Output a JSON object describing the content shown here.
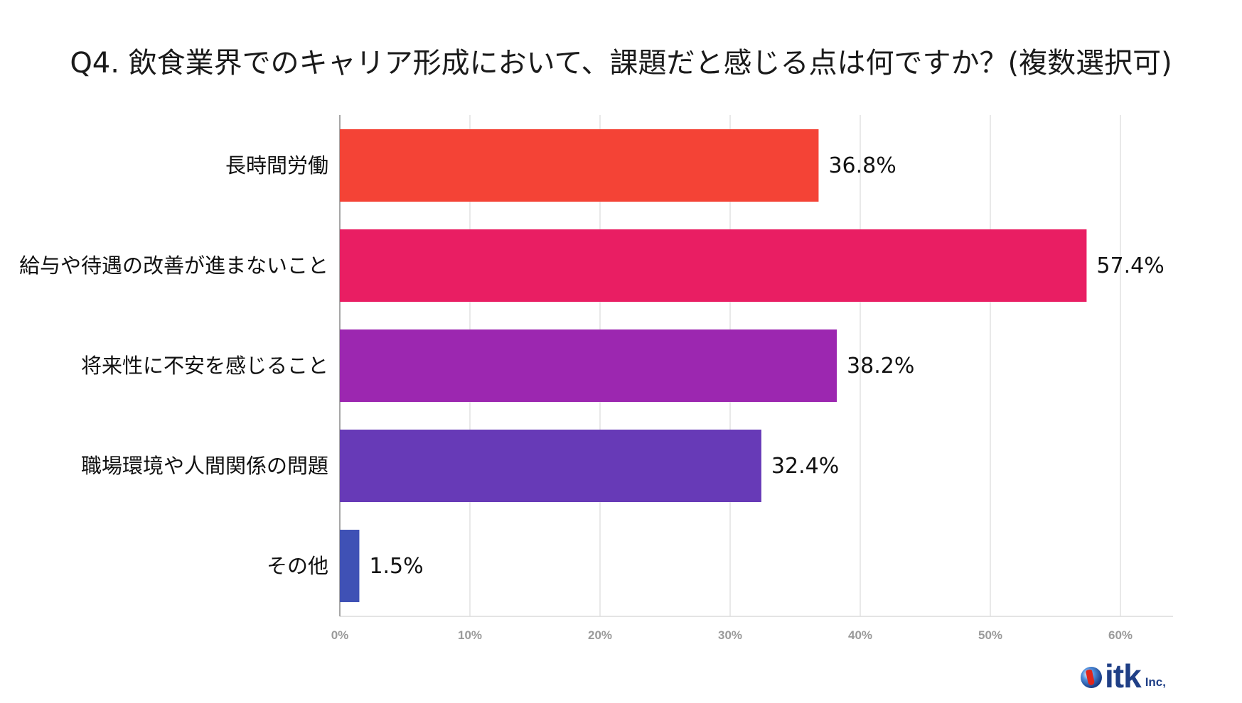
{
  "chart_data": {
    "type": "bar",
    "orientation": "horizontal",
    "title": "Q4. 飲食業界でのキャリア形成において、課題だと感じる点は何ですか？(複数選択可)",
    "categories": [
      "長時間労働",
      "給与や待遇の改善が進まないこと",
      "将来性に不安を感じること",
      "職場環境や人間関係の問題",
      "その他"
    ],
    "values": [
      36.8,
      57.4,
      38.2,
      32.4,
      1.5
    ],
    "value_labels": [
      "36.8%",
      "57.4%",
      "38.2%",
      "32.4%",
      "1.5%"
    ],
    "colors": [
      "#f44336",
      "#e91e63",
      "#9c27b0",
      "#673ab7",
      "#3f51b5"
    ],
    "xlim": [
      0,
      64
    ],
    "xticks": [
      0,
      10,
      20,
      30,
      40,
      50,
      60
    ],
    "xtick_labels": [
      "0%",
      "10%",
      "20%",
      "30%",
      "40%",
      "50%",
      "60%"
    ],
    "xlabel": "",
    "ylabel": "",
    "grid": true,
    "legend": "none"
  },
  "logo": {
    "text": "itk",
    "suffix": "Inc,"
  }
}
